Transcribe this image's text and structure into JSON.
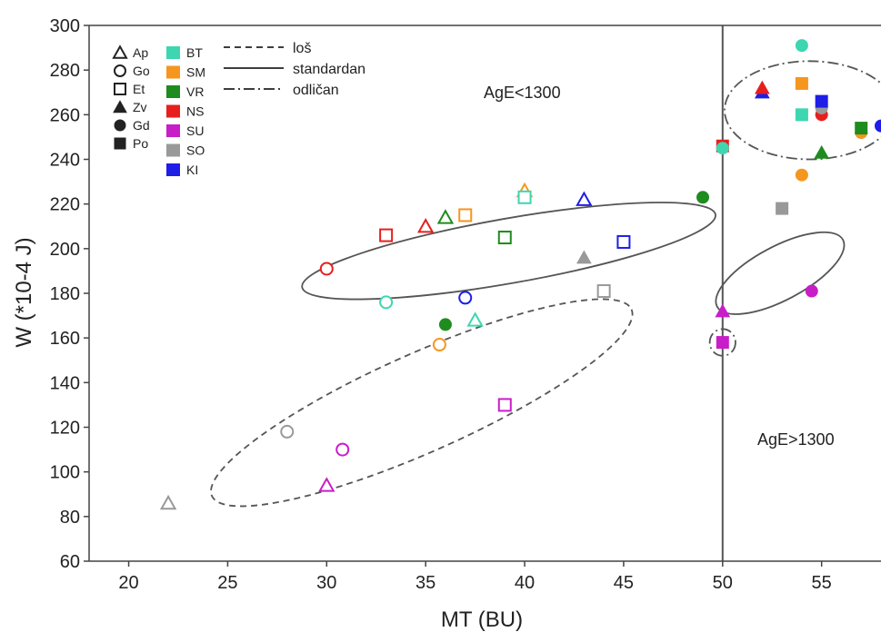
{
  "chart_data": {
    "type": "scatter",
    "title": "",
    "xlabel": "MT (BU)",
    "ylabel": "W (*10-4 J)",
    "xlim": [
      18,
      58
    ],
    "ylim": [
      60,
      300
    ],
    "xticks": [
      "20",
      "25",
      "30",
      "35",
      "40",
      "45",
      "50",
      "55"
    ],
    "yticks": [
      "60",
      "80",
      "100",
      "120",
      "140",
      "160",
      "180",
      "200",
      "220",
      "240",
      "260",
      "280",
      "300"
    ],
    "grid": false,
    "threshold_x": 50,
    "annotations": [
      "AgE<1300",
      "AgE>1300"
    ],
    "legend_shapes": [
      {
        "label": "Ap",
        "shape": "triangle",
        "filled": false
      },
      {
        "label": "Go",
        "shape": "circle",
        "filled": false
      },
      {
        "label": "Et",
        "shape": "square",
        "filled": false
      },
      {
        "label": "Zv",
        "shape": "triangle",
        "filled": true
      },
      {
        "label": "Gd",
        "shape": "circle",
        "filled": true
      },
      {
        "label": "Po",
        "shape": "square",
        "filled": true
      }
    ],
    "legend_colors": [
      {
        "label": "BT",
        "color": "#3dd6b0"
      },
      {
        "label": "SM",
        "color": "#f5961e"
      },
      {
        "label": "VR",
        "color": "#1e8c1e"
      },
      {
        "label": "NS",
        "color": "#e81e1e"
      },
      {
        "label": "SU",
        "color": "#c81ec8"
      },
      {
        "label": "SO",
        "color": "#999999"
      },
      {
        "label": "KI",
        "color": "#1e1ee6"
      }
    ],
    "legend_lines": [
      {
        "label": "loš",
        "style": "dashed"
      },
      {
        "label": "standardan",
        "style": "solid"
      },
      {
        "label": "odličan",
        "style": "dash-dot"
      }
    ],
    "points": [
      {
        "x": 22,
        "y": 86,
        "shape": "triangle",
        "filled": false,
        "color": "SO"
      },
      {
        "x": 28,
        "y": 118,
        "shape": "circle",
        "filled": false,
        "color": "SO"
      },
      {
        "x": 30,
        "y": 94,
        "shape": "triangle",
        "filled": false,
        "color": "SU"
      },
      {
        "x": 30.8,
        "y": 110,
        "shape": "circle",
        "filled": false,
        "color": "SU"
      },
      {
        "x": 39,
        "y": 130,
        "shape": "square",
        "filled": false,
        "color": "SU"
      },
      {
        "x": 35.7,
        "y": 157,
        "shape": "circle",
        "filled": false,
        "color": "SM"
      },
      {
        "x": 36,
        "y": 166,
        "shape": "circle",
        "filled": true,
        "color": "VR"
      },
      {
        "x": 37.5,
        "y": 168,
        "shape": "triangle",
        "filled": false,
        "color": "BT"
      },
      {
        "x": 33,
        "y": 176,
        "shape": "circle",
        "filled": false,
        "color": "BT"
      },
      {
        "x": 37,
        "y": 178,
        "shape": "circle",
        "filled": false,
        "color": "KI"
      },
      {
        "x": 30,
        "y": 191,
        "shape": "circle",
        "filled": false,
        "color": "NS"
      },
      {
        "x": 33,
        "y": 206,
        "shape": "square",
        "filled": false,
        "color": "NS"
      },
      {
        "x": 35,
        "y": 210,
        "shape": "triangle",
        "filled": false,
        "color": "NS"
      },
      {
        "x": 36,
        "y": 214,
        "shape": "triangle",
        "filled": false,
        "color": "VR"
      },
      {
        "x": 37,
        "y": 215,
        "shape": "square",
        "filled": false,
        "color": "SM"
      },
      {
        "x": 39,
        "y": 205,
        "shape": "square",
        "filled": false,
        "color": "VR"
      },
      {
        "x": 40,
        "y": 226,
        "shape": "triangle",
        "filled": false,
        "color": "SM"
      },
      {
        "x": 40,
        "y": 223,
        "shape": "square",
        "filled": false,
        "color": "BT"
      },
      {
        "x": 43,
        "y": 222,
        "shape": "triangle",
        "filled": false,
        "color": "KI"
      },
      {
        "x": 43,
        "y": 196,
        "shape": "triangle",
        "filled": true,
        "color": "SO"
      },
      {
        "x": 44,
        "y": 181,
        "shape": "square",
        "filled": false,
        "color": "SO"
      },
      {
        "x": 45,
        "y": 203,
        "shape": "square",
        "filled": false,
        "color": "KI"
      },
      {
        "x": 49,
        "y": 223,
        "shape": "circle",
        "filled": true,
        "color": "VR"
      },
      {
        "x": 50,
        "y": 246,
        "shape": "square",
        "filled": true,
        "color": "NS"
      },
      {
        "x": 50,
        "y": 245,
        "shape": "circle",
        "filled": true,
        "color": "BT"
      },
      {
        "x": 50,
        "y": 172,
        "shape": "triangle",
        "filled": true,
        "color": "SU"
      },
      {
        "x": 50,
        "y": 158,
        "shape": "square",
        "filled": true,
        "color": "SU"
      },
      {
        "x": 52,
        "y": 270,
        "shape": "triangle",
        "filled": true,
        "color": "KI"
      },
      {
        "x": 52,
        "y": 272,
        "shape": "triangle",
        "filled": true,
        "color": "NS"
      },
      {
        "x": 53,
        "y": 218,
        "shape": "square",
        "filled": true,
        "color": "SO"
      },
      {
        "x": 54,
        "y": 291,
        "shape": "circle",
        "filled": true,
        "color": "BT"
      },
      {
        "x": 54,
        "y": 274,
        "shape": "square",
        "filled": true,
        "color": "SM"
      },
      {
        "x": 54,
        "y": 260,
        "shape": "square",
        "filled": true,
        "color": "BT"
      },
      {
        "x": 54,
        "y": 233,
        "shape": "circle",
        "filled": true,
        "color": "SM"
      },
      {
        "x": 54.5,
        "y": 181,
        "shape": "circle",
        "filled": true,
        "color": "SU"
      },
      {
        "x": 55,
        "y": 260,
        "shape": "circle",
        "filled": true,
        "color": "NS"
      },
      {
        "x": 55,
        "y": 263,
        "shape": "circle",
        "filled": true,
        "color": "SO"
      },
      {
        "x": 55,
        "y": 266,
        "shape": "square",
        "filled": true,
        "color": "KI"
      },
      {
        "x": 55,
        "y": 243,
        "shape": "triangle",
        "filled": true,
        "color": "VR"
      },
      {
        "x": 57,
        "y": 252,
        "shape": "circle",
        "filled": true,
        "color": "SM"
      },
      {
        "x": 57,
        "y": 254,
        "shape": "square",
        "filled": true,
        "color": "VR"
      },
      {
        "x": 58,
        "y": 255,
        "shape": "circle",
        "filled": true,
        "color": "KI"
      }
    ],
    "ellipses": [
      {
        "style": "dashed",
        "cx": 34.8,
        "cy": 131,
        "rx": 11.6,
        "ry": 22,
        "angle_deg": -24
      },
      {
        "style": "solid",
        "cx": 39.2,
        "cy": 199,
        "rx": 10.6,
        "ry": 14.5,
        "angle_deg": -10
      },
      {
        "style": "solid",
        "cx": 52.9,
        "cy": 189,
        "rx": 3.6,
        "ry": 12,
        "angle_deg": -28
      },
      {
        "style": "dash-dot",
        "cx": 54.4,
        "cy": 262,
        "rx": 4.3,
        "ry": 22
      },
      {
        "style": "dash-dot",
        "cx": 50,
        "cy": 158,
        "rx": 0.65,
        "ry": 6
      }
    ]
  }
}
